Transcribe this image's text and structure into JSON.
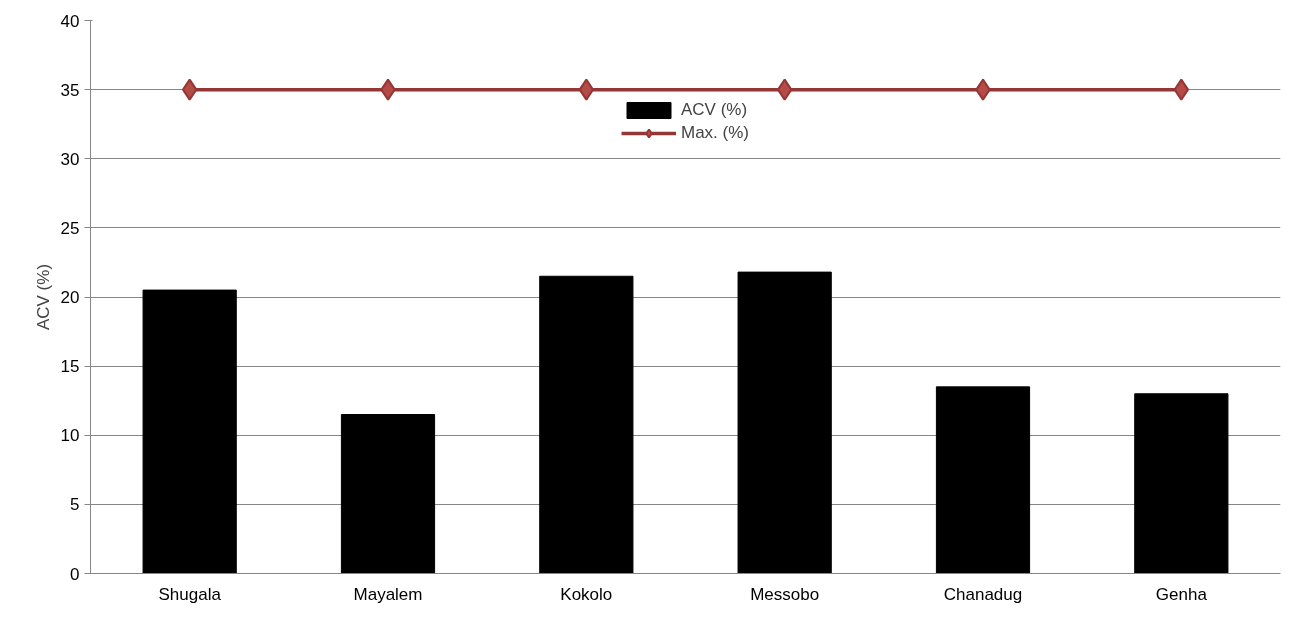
{
  "chart_data": {
    "type": "bar",
    "ylabel": "ACV (%)",
    "categories": [
      "Shugala",
      "Mayalem",
      "Kokolo",
      "Messobo",
      "Chanadug",
      "Genha"
    ],
    "series": [
      {
        "name": "ACV (%)",
        "color": "#000000",
        "values": [
          20.5,
          11.5,
          21.5,
          21.8,
          13.5,
          13.0
        ]
      },
      {
        "name": "Max. (%)",
        "type": "line",
        "color": "#943634",
        "marker": "diamond",
        "values": [
          35,
          35,
          35,
          35,
          35,
          35
        ]
      }
    ],
    "ylim": [
      0,
      40
    ],
    "yticks": [
      0,
      5,
      10,
      15,
      20,
      25,
      30,
      35,
      40
    ],
    "grid": "y",
    "legend": "top"
  }
}
